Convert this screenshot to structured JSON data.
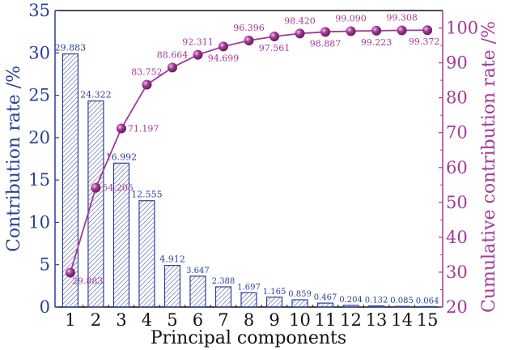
{
  "chart_data": {
    "type": "bar+line",
    "xlabel": "Principal components",
    "ylabel_left": "Contribution rate /%",
    "ylabel_right": "Cumulative contribution rate /%",
    "categories": [
      "1",
      "2",
      "3",
      "4",
      "5",
      "6",
      "7",
      "8",
      "9",
      "10",
      "11",
      "12",
      "13",
      "14",
      "15"
    ],
    "series": [
      {
        "axis": "left",
        "type": "bar",
        "values": [
          29.883,
          24.322,
          16.992,
          12.555,
          4.912,
          3.647,
          2.388,
          1.697,
          1.165,
          0.859,
          0.467,
          0.204,
          0.132,
          0.085,
          0.064
        ],
        "labels": [
          "29.883",
          "24.322",
          "16.992",
          "12.555",
          "4.912",
          "3.647",
          "2.388",
          "1.697",
          "1.165",
          "0.859",
          "0.467",
          "0.204",
          "0.132",
          "0.085",
          "0.064"
        ]
      },
      {
        "axis": "right",
        "type": "line",
        "values": [
          29.883,
          54.205,
          71.197,
          83.752,
          88.664,
          92.311,
          94.699,
          96.396,
          97.561,
          98.42,
          98.887,
          99.09,
          99.223,
          99.308,
          99.372
        ],
        "labels": [
          "29.883",
          "54.205",
          "71.197",
          "83.752",
          "88.664",
          "92.311",
          "94.699",
          "96.396",
          "97.561",
          "98.420",
          "98.887",
          "99.090",
          "99.223",
          "99.308",
          "99.372"
        ]
      }
    ],
    "ylim_left": [
      0,
      35
    ],
    "yticks_left": [
      "0",
      "5",
      "10",
      "15",
      "20",
      "25",
      "30",
      "35"
    ],
    "ylim_right": [
      20,
      105
    ],
    "yticks_right": [
      "20",
      "30",
      "40",
      "50",
      "60",
      "70",
      "80",
      "90",
      "100"
    ],
    "grid": false,
    "colors": {
      "bar": "#2b3f9a",
      "line": "#a23a96",
      "axis_left": "#2b3f9a",
      "axis_right": "#a23a96",
      "text": "#111111"
    }
  }
}
